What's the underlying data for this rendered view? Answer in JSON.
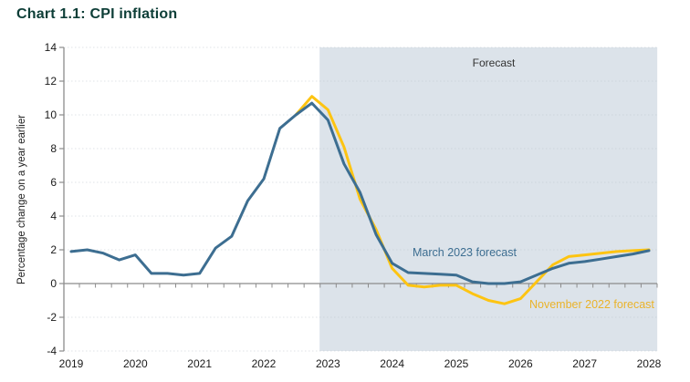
{
  "title": "Chart 1.1: CPI inflation",
  "colors": {
    "title_text": "#0d3e37",
    "march_line": "#3d6e91",
    "november_line": "#fdc412",
    "november_label_text": "#eab32a",
    "forecast_shade": "#dce3ea",
    "axis": "#8c8c8c",
    "grid": "#b9c2cc",
    "tick_text": "#1a1a1a"
  },
  "chart_data": {
    "type": "line",
    "title": "Chart 1.1: CPI inflation",
    "ylabel": "Percentage change on a year earlier",
    "xlabel": "",
    "ylim": [
      -4,
      14
    ],
    "y_ticks": [
      14,
      12,
      10,
      8,
      6,
      4,
      2,
      0,
      -2,
      -4
    ],
    "x_ticks": [
      "2019",
      "2020",
      "2021",
      "2022",
      "2023",
      "2024",
      "2025",
      "2026",
      "2027",
      "2028"
    ],
    "grid": true,
    "legend_position": "inline-annotations",
    "forecast_label": "Forecast",
    "forecast_region_start": 2022.87,
    "forecast_region_end": 2028.13,
    "x_unit": "years (quarterly data points)",
    "series": [
      {
        "name": "March 2023 forecast",
        "color": "#3d6e91",
        "x_start": 2019.0,
        "x_step": 0.25,
        "values": [
          1.9,
          2.0,
          1.8,
          1.4,
          1.7,
          0.6,
          0.6,
          0.5,
          0.6,
          2.1,
          2.8,
          4.9,
          6.2,
          9.2,
          10.0,
          10.7,
          9.7,
          7.1,
          5.4,
          2.9,
          1.2,
          0.65,
          0.6,
          0.55,
          0.5,
          0.1,
          0.0,
          0.0,
          0.1,
          0.5,
          0.9,
          1.2,
          1.3,
          1.45,
          1.6,
          1.75,
          1.95
        ]
      },
      {
        "name": "November 2022 forecast",
        "color": "#fdc412",
        "x_start": 2022.5,
        "x_step": 0.25,
        "values": [
          10.0,
          11.1,
          10.3,
          8.1,
          5.0,
          3.2,
          0.9,
          -0.1,
          -0.2,
          -0.1,
          -0.1,
          -0.6,
          -1.0,
          -1.2,
          -0.9,
          0.1,
          1.1,
          1.6,
          1.7,
          1.8,
          1.9,
          1.95,
          2.0
        ]
      }
    ]
  }
}
